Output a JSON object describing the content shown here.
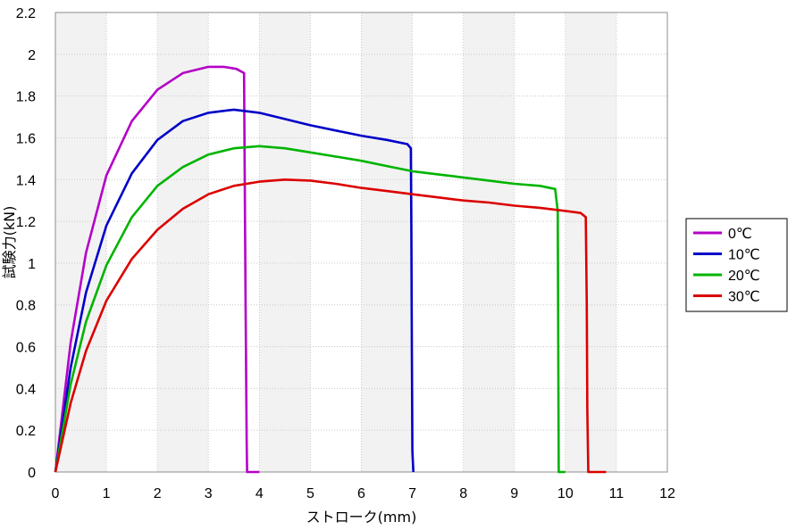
{
  "chart_data": {
    "type": "line",
    "title": "",
    "xlabel": "ストローク(mm)",
    "ylabel": "試験力(kN)",
    "xlim": [
      0,
      12
    ],
    "ylim": [
      0,
      2.2
    ],
    "xticks": [
      "0",
      "1",
      "2",
      "3",
      "4",
      "5",
      "6",
      "7",
      "8",
      "9",
      "10",
      "11",
      "12"
    ],
    "yticks": [
      "0",
      "0.2",
      "0.4",
      "0.6",
      "0.8",
      "1",
      "1.2",
      "1.4",
      "1.6",
      "1.8",
      "2",
      "2.2"
    ],
    "grid": true,
    "alternating_bands": "x",
    "legend_position": "right",
    "series": [
      {
        "name": "0℃",
        "color": "#b400c8",
        "points": [
          [
            0,
            0
          ],
          [
            0.3,
            0.62
          ],
          [
            0.6,
            1.05
          ],
          [
            1.0,
            1.42
          ],
          [
            1.5,
            1.68
          ],
          [
            2.0,
            1.83
          ],
          [
            2.5,
            1.91
          ],
          [
            3.0,
            1.94
          ],
          [
            3.3,
            1.94
          ],
          [
            3.55,
            1.93
          ],
          [
            3.7,
            1.91
          ],
          [
            3.71,
            1.5
          ],
          [
            3.73,
            0.8
          ],
          [
            3.75,
            0.15
          ],
          [
            3.76,
            0
          ],
          [
            4.0,
            0
          ]
        ]
      },
      {
        "name": "10℃",
        "color": "#0000c8",
        "points": [
          [
            0,
            0
          ],
          [
            0.3,
            0.5
          ],
          [
            0.6,
            0.86
          ],
          [
            1.0,
            1.18
          ],
          [
            1.5,
            1.43
          ],
          [
            2.0,
            1.59
          ],
          [
            2.5,
            1.68
          ],
          [
            3.0,
            1.72
          ],
          [
            3.5,
            1.735
          ],
          [
            4.0,
            1.72
          ],
          [
            4.5,
            1.69
          ],
          [
            5.0,
            1.66
          ],
          [
            5.5,
            1.635
          ],
          [
            6.0,
            1.61
          ],
          [
            6.5,
            1.59
          ],
          [
            6.9,
            1.57
          ],
          [
            6.97,
            1.55
          ],
          [
            6.98,
            1.2
          ],
          [
            6.99,
            0.6
          ],
          [
            7.0,
            0.1
          ],
          [
            7.02,
            0
          ]
        ]
      },
      {
        "name": "20℃",
        "color": "#00b400",
        "points": [
          [
            0,
            0
          ],
          [
            0.3,
            0.42
          ],
          [
            0.6,
            0.72
          ],
          [
            1.0,
            0.99
          ],
          [
            1.5,
            1.22
          ],
          [
            2.0,
            1.37
          ],
          [
            2.5,
            1.46
          ],
          [
            3.0,
            1.52
          ],
          [
            3.5,
            1.55
          ],
          [
            4.0,
            1.56
          ],
          [
            4.5,
            1.55
          ],
          [
            5.0,
            1.53
          ],
          [
            5.5,
            1.51
          ],
          [
            6.0,
            1.49
          ],
          [
            6.5,
            1.465
          ],
          [
            7.0,
            1.44
          ],
          [
            7.5,
            1.425
          ],
          [
            8.0,
            1.41
          ],
          [
            8.5,
            1.395
          ],
          [
            9.0,
            1.38
          ],
          [
            9.5,
            1.37
          ],
          [
            9.8,
            1.355
          ],
          [
            9.85,
            1.25
          ],
          [
            9.86,
            0.7
          ],
          [
            9.87,
            0
          ],
          [
            10.0,
            0
          ]
        ]
      },
      {
        "name": "30℃",
        "color": "#dc0000",
        "points": [
          [
            0,
            0
          ],
          [
            0.3,
            0.33
          ],
          [
            0.6,
            0.58
          ],
          [
            1.0,
            0.82
          ],
          [
            1.5,
            1.02
          ],
          [
            2.0,
            1.16
          ],
          [
            2.5,
            1.26
          ],
          [
            3.0,
            1.33
          ],
          [
            3.5,
            1.37
          ],
          [
            4.0,
            1.39
          ],
          [
            4.5,
            1.4
          ],
          [
            5.0,
            1.395
          ],
          [
            5.5,
            1.38
          ],
          [
            6.0,
            1.36
          ],
          [
            6.5,
            1.345
          ],
          [
            7.0,
            1.33
          ],
          [
            7.5,
            1.315
          ],
          [
            8.0,
            1.3
          ],
          [
            8.5,
            1.29
          ],
          [
            9.0,
            1.275
          ],
          [
            9.5,
            1.265
          ],
          [
            10.0,
            1.25
          ],
          [
            10.3,
            1.24
          ],
          [
            10.4,
            1.22
          ],
          [
            10.42,
            0.8
          ],
          [
            10.43,
            0.3
          ],
          [
            10.45,
            0
          ],
          [
            10.8,
            0
          ]
        ]
      }
    ]
  }
}
